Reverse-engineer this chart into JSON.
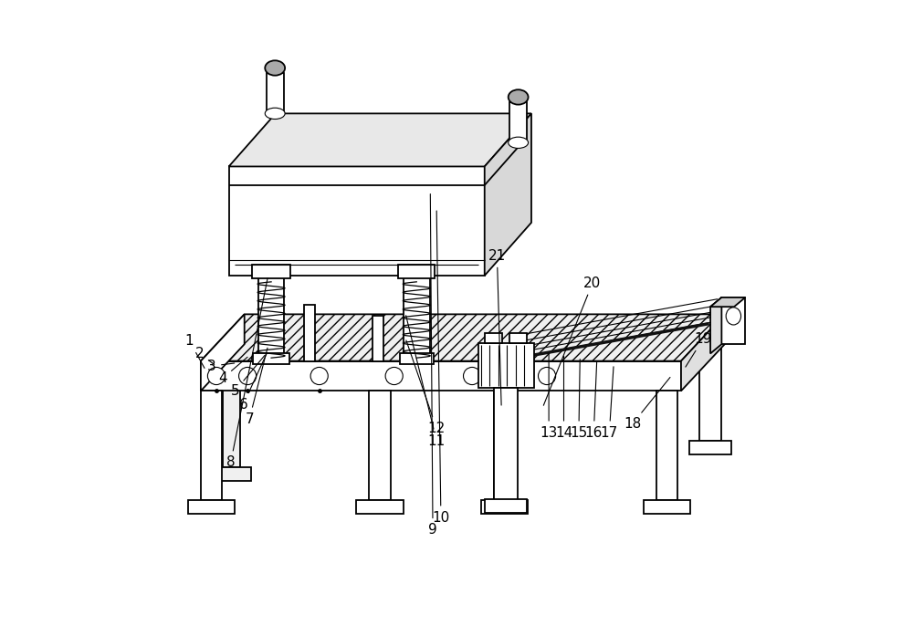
{
  "bg_color": "#ffffff",
  "line_color": "#000000",
  "lw_main": 1.3,
  "lw_thin": 0.8,
  "lw_thick": 2.5,
  "label_fs": 11,
  "label_positions": {
    "1": {
      "txt": [
        0.072,
        0.455
      ],
      "pt": [
        0.098,
        0.408
      ]
    },
    "2": {
      "txt": [
        0.088,
        0.435
      ],
      "pt": [
        0.115,
        0.415
      ]
    },
    "3": {
      "txt": [
        0.108,
        0.415
      ],
      "pt": [
        0.148,
        0.42
      ]
    },
    "4": {
      "txt": [
        0.125,
        0.395
      ],
      "pt": [
        0.168,
        0.432
      ]
    },
    "5": {
      "txt": [
        0.145,
        0.375
      ],
      "pt": [
        0.195,
        0.435
      ]
    },
    "6": {
      "txt": [
        0.158,
        0.353
      ],
      "pt": [
        0.198,
        0.44
      ]
    },
    "7": {
      "txt": [
        0.168,
        0.33
      ],
      "pt": [
        0.198,
        0.448
      ]
    },
    "8": {
      "txt": [
        0.138,
        0.26
      ],
      "pt": [
        0.198,
        0.56
      ]
    },
    "9": {
      "txt": [
        0.462,
        0.152
      ],
      "pt": [
        0.458,
        0.695
      ]
    },
    "10": {
      "txt": [
        0.475,
        0.172
      ],
      "pt": [
        0.468,
        0.668
      ]
    },
    "11": {
      "txt": [
        0.468,
        0.295
      ],
      "pt": [
        0.418,
        0.5
      ]
    },
    "12": {
      "txt": [
        0.468,
        0.315
      ],
      "pt": [
        0.418,
        0.46
      ]
    },
    "13": {
      "txt": [
        0.648,
        0.308
      ],
      "pt": [
        0.648,
        0.44
      ]
    },
    "14": {
      "txt": [
        0.672,
        0.308
      ],
      "pt": [
        0.672,
        0.435
      ]
    },
    "15": {
      "txt": [
        0.696,
        0.308
      ],
      "pt": [
        0.698,
        0.43
      ]
    },
    "16": {
      "txt": [
        0.72,
        0.308
      ],
      "pt": [
        0.725,
        0.425
      ]
    },
    "17": {
      "txt": [
        0.745,
        0.308
      ],
      "pt": [
        0.752,
        0.418
      ]
    },
    "18": {
      "txt": [
        0.782,
        0.322
      ],
      "pt": [
        0.845,
        0.4
      ]
    },
    "19": {
      "txt": [
        0.895,
        0.458
      ],
      "pt": [
        0.865,
        0.41
      ]
    },
    "20": {
      "txt": [
        0.718,
        0.548
      ],
      "pt": [
        0.638,
        0.348
      ]
    },
    "21": {
      "txt": [
        0.565,
        0.592
      ],
      "pt": [
        0.572,
        0.348
      ]
    }
  }
}
